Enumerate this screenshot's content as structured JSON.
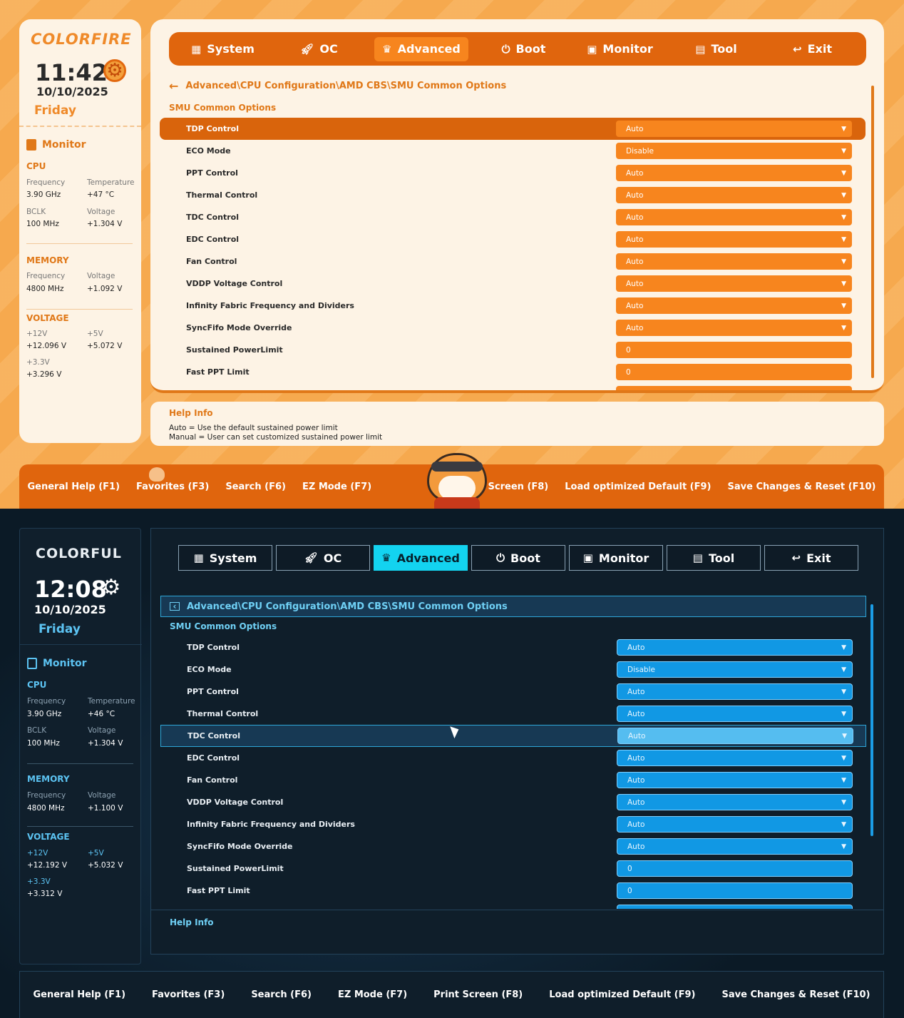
{
  "top": {
    "brand": "COLORFIRE",
    "time": "11:42",
    "date": "10/10/2025",
    "day": "Friday",
    "monitor_title": "Monitor",
    "cpu": {
      "title": "CPU",
      "freq_label": "Frequency",
      "freq": "3.90 GHz",
      "temp_label": "Temperature",
      "temp": "+47 °C",
      "bclk_label": "BCLK",
      "bclk": "100 MHz",
      "volt_label": "Voltage",
      "volt": "+1.304 V"
    },
    "memory": {
      "title": "MEMORY",
      "freq_label": "Frequency",
      "freq": "4800 MHz",
      "volt_label": "Voltage",
      "volt": "+1.092 V"
    },
    "voltage": {
      "title": "VOLTAGE",
      "v12_label": "+12V",
      "v12": "+12.096 V",
      "v5_label": "+5V",
      "v5": "+5.072 V",
      "v33_label": "+3.3V",
      "v33": "+3.296 V"
    },
    "help_lines": [
      "Auto = Use the default sustained power limit",
      "Manual = User can set customized sustained power limit"
    ]
  },
  "bottom": {
    "brand": "COLORFUL",
    "time": "12:08",
    "date": "10/10/2025",
    "day": "Friday",
    "monitor_title": "Monitor",
    "cpu": {
      "title": "CPU",
      "freq_label": "Frequency",
      "freq": "3.90 GHz",
      "temp_label": "Temperature",
      "temp": "+46 °C",
      "bclk_label": "BCLK",
      "bclk": "100 MHz",
      "volt_label": "Voltage",
      "volt": "+1.304 V"
    },
    "memory": {
      "title": "MEMORY",
      "freq_label": "Frequency",
      "freq": "4800 MHz",
      "volt_label": "Voltage",
      "volt": "+1.100 V"
    },
    "voltage": {
      "title": "VOLTAGE",
      "v12_label": "+12V",
      "v12": "+12.192 V",
      "v5_label": "+5V",
      "v5": "+5.032 V",
      "v33_label": "+3.3V",
      "v33": "+3.312 V"
    }
  },
  "nav": {
    "system": "System",
    "oc": "OC",
    "advanced": "Advanced",
    "boot": "Boot",
    "monitor": "Monitor",
    "tool": "Tool",
    "exit": "Exit"
  },
  "breadcrumb": "Advanced\\CPU Configuration\\AMD CBS\\SMU Common Options",
  "section_title": "SMU Common Options",
  "help_title": "Help Info",
  "settings": [
    {
      "label": "TDP Control",
      "value": "Auto",
      "type": "dropdown"
    },
    {
      "label": "ECO Mode",
      "value": "Disable",
      "type": "dropdown"
    },
    {
      "label": "PPT Control",
      "value": "Auto",
      "type": "dropdown"
    },
    {
      "label": "Thermal Control",
      "value": "Auto",
      "type": "dropdown"
    },
    {
      "label": "TDC Control",
      "value": "Auto",
      "type": "dropdown"
    },
    {
      "label": "EDC Control",
      "value": "Auto",
      "type": "dropdown"
    },
    {
      "label": "Fan Control",
      "value": "Auto",
      "type": "dropdown"
    },
    {
      "label": "VDDP Voltage Control",
      "value": "Auto",
      "type": "dropdown"
    },
    {
      "label": "Infinity Fabric Frequency and Dividers",
      "value": "Auto",
      "type": "dropdown"
    },
    {
      "label": "SyncFifo Mode Override",
      "value": "Auto",
      "type": "dropdown"
    },
    {
      "label": "Sustained PowerLimit",
      "value": "0",
      "type": "input"
    },
    {
      "label": "Fast PPT Limit",
      "value": "0",
      "type": "input"
    }
  ],
  "footer": {
    "f1": "General Help (F1)",
    "f3": "Favorites (F3)",
    "f6": "Search (F6)",
    "f7": "EZ Mode (F7)",
    "f8": "Print Screen (F8)",
    "f9": "Load optimized Default (F9)",
    "f10": "Save Changes & Reset (F10)"
  },
  "colors": {
    "top_accent": "#e0650d",
    "bottom_accent": "#13d3f0"
  }
}
